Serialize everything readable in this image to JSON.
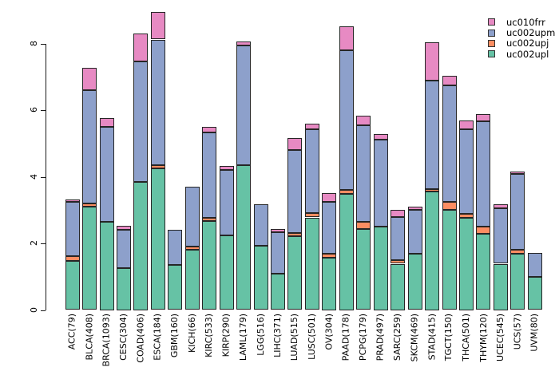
{
  "chart_data": {
    "type": "bar",
    "stacked": true,
    "title": "",
    "xlabel": "",
    "ylabel": "",
    "grid": false,
    "y_ticks": [
      0,
      2,
      4,
      6,
      8
    ],
    "ylim": [
      0,
      9.2
    ],
    "categories": [
      "ACC(79)",
      "BLCA(408)",
      "BRCA(1093)",
      "CESC(304)",
      "COAD(406)",
      "ESCA(184)",
      "GBM(160)",
      "KICH(66)",
      "KIRC(533)",
      "KIRP(290)",
      "LAML(179)",
      "LGG(516)",
      "LIHC(371)",
      "LUAD(515)",
      "LUSC(501)",
      "OV(304)",
      "PAAD(178)",
      "PCPG(179)",
      "PRAD(497)",
      "SARC(259)",
      "SKCM(469)",
      "STAD(415)",
      "TGCT(150)",
      "THCA(501)",
      "THYM(120)",
      "UCEC(545)",
      "UCS(57)",
      "UVM(80)"
    ],
    "series": [
      {
        "name": "uc002upl",
        "color": "#66C2A5",
        "values": [
          1.48,
          3.1,
          2.65,
          1.26,
          3.85,
          4.25,
          1.36,
          1.82,
          2.68,
          2.24,
          4.35,
          1.94,
          1.1,
          2.21,
          2.78,
          1.57,
          3.49,
          2.44,
          2.5,
          1.39,
          1.68,
          3.56,
          3.0,
          2.77,
          2.28,
          1.39,
          1.7,
          0.99
        ]
      },
      {
        "name": "uc002upj",
        "color": "#FC8D62",
        "values": [
          0.15,
          0.1,
          0,
          0,
          0,
          0.11,
          0,
          0.08,
          0.1,
          0,
          0,
          0,
          0,
          0.1,
          0.14,
          0.11,
          0.12,
          0.2,
          0,
          0.11,
          0,
          0.08,
          0.26,
          0.11,
          0.23,
          0,
          0.1,
          0
        ]
      },
      {
        "name": "uc002upm",
        "color": "#8DA0CB",
        "values": [
          1.62,
          3.4,
          2.85,
          1.16,
          3.63,
          3.77,
          1.04,
          1.81,
          2.56,
          1.96,
          3.6,
          1.24,
          1.25,
          2.49,
          2.52,
          1.56,
          4.19,
          2.92,
          2.62,
          1.3,
          1.32,
          3.26,
          3.5,
          2.56,
          3.17,
          1.66,
          2.28,
          0.72
        ]
      },
      {
        "name": "uc010frr",
        "color": "#E78AC3",
        "values": [
          0.07,
          0.68,
          0.27,
          0.1,
          0.84,
          0.83,
          0,
          0,
          0.16,
          0.12,
          0.12,
          0,
          0.09,
          0.36,
          0.16,
          0.28,
          0.73,
          0.28,
          0.16,
          0.22,
          0.11,
          1.14,
          0.28,
          0.26,
          0.22,
          0.13,
          0.08,
          0
        ]
      }
    ],
    "legend": {
      "position": "top-right",
      "entries_top_to_bottom": [
        "uc010frr",
        "uc002upm",
        "uc002upj",
        "uc002upl"
      ]
    }
  }
}
